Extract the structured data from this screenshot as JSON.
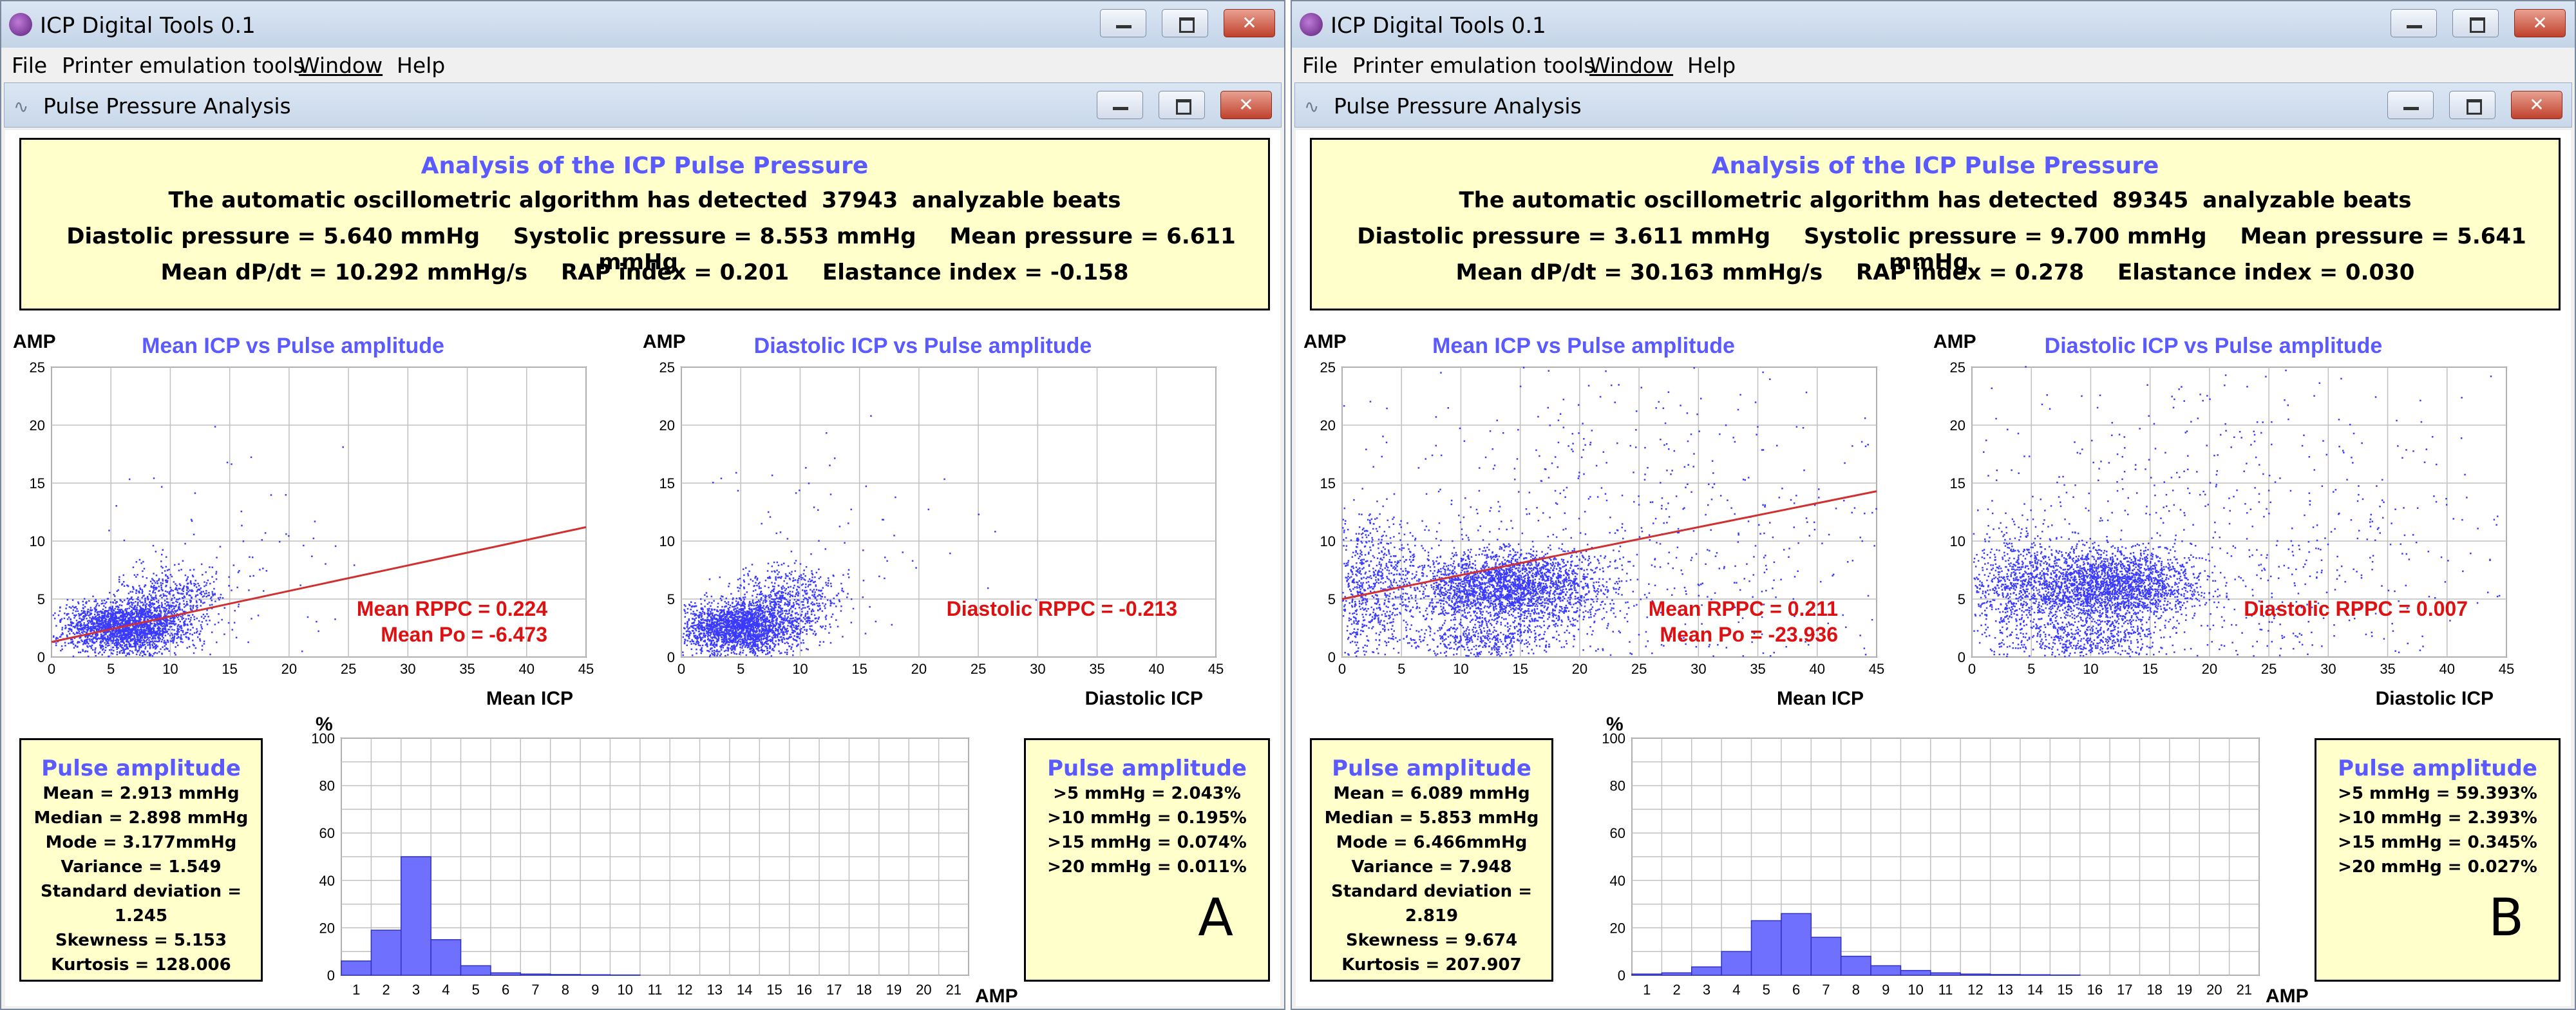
{
  "windows": [
    {
      "id": "A",
      "app_title": "ICP Digital Tools 0.1",
      "menu": [
        "File",
        "Printer emulation tools",
        "Window",
        "Help"
      ],
      "child_title": "Pulse Pressure Analysis",
      "summary": {
        "title": "Analysis of the ICP Pulse Pressure",
        "detected": "The automatic oscillometric algorithm has detected",
        "beats": "37943",
        "beats_suffix": "analyzable beats",
        "diastolic": "Diastolic pressure = 5.640 mmHg",
        "systolic": "Systolic pressure = 8.553 mmHg",
        "mean": "Mean pressure = 6.611 mmHg",
        "dpdt": "Mean dP/dt = 10.292 mmHg/s",
        "rap": "RAP index = 0.201",
        "elastance": "Elastance index = -0.158"
      },
      "scatter_mean": {
        "title": "Mean ICP  vs  Pulse amplitude",
        "ylabel": "AMP",
        "xlabel": "Mean ICP",
        "rppc": "Mean RPPC = 0.224",
        "po": "Mean Po = -6.473"
      },
      "scatter_dia": {
        "title": "Diastolic ICP  vs  Pulse amplitude",
        "ylabel": "AMP",
        "xlabel": "Diastolic ICP",
        "rppc": "Diastolic RPPC = -0.213"
      },
      "stats": {
        "title": "Pulse amplitude",
        "lines": [
          "Mean = 2.913 mmHg",
          "Median = 2.898 mmHg",
          "Mode = 3.177mmHg",
          "Variance = 1.549",
          "Standard deviation = 1.245",
          "Skewness = 5.153",
          "Kurtosis = 128.006"
        ]
      },
      "thresholds": {
        "title": "Pulse amplitude",
        "lines": [
          ">5 mmHg = 2.043%",
          ">10 mmHg = 0.195%",
          ">15 mmHg = 0.074%",
          ">20 mmHg = 0.011%"
        ]
      },
      "histogram": {
        "ylabel": "%",
        "xlabel": "AMP"
      },
      "panel_label": "A"
    },
    {
      "id": "B",
      "app_title": "ICP Digital Tools 0.1",
      "menu": [
        "File",
        "Printer emulation tools",
        "Window",
        "Help"
      ],
      "child_title": "Pulse Pressure Analysis",
      "summary": {
        "title": "Analysis of the ICP Pulse Pressure",
        "detected": "The automatic oscillometric algorithm has detected",
        "beats": "89345",
        "beats_suffix": "analyzable beats",
        "diastolic": "Diastolic pressure = 3.611 mmHg",
        "systolic": "Systolic pressure = 9.700 mmHg",
        "mean": "Mean pressure = 5.641 mmHg",
        "dpdt": "Mean dP/dt = 30.163 mmHg/s",
        "rap": "RAP index = 0.278",
        "elastance": "Elastance index = 0.030"
      },
      "scatter_mean": {
        "title": "Mean ICP  vs  Pulse amplitude",
        "ylabel": "AMP",
        "xlabel": "Mean ICP",
        "rppc": "Mean RPPC = 0.211",
        "po": "Mean Po = -23.936"
      },
      "scatter_dia": {
        "title": "Diastolic ICP  vs  Pulse amplitude",
        "ylabel": "AMP",
        "xlabel": "Diastolic ICP",
        "rppc": "Diastolic RPPC = 0.007"
      },
      "stats": {
        "title": "Pulse amplitude",
        "lines": [
          "Mean = 6.089 mmHg",
          "Median = 5.853 mmHg",
          "Mode = 6.466mmHg",
          "Variance = 7.948",
          "Standard deviation = 2.819",
          "Skewness = 9.674",
          "Kurtosis = 207.907"
        ]
      },
      "thresholds": {
        "title": "Pulse amplitude",
        "lines": [
          ">5 mmHg = 59.393%",
          ">10 mmHg = 2.393%",
          ">15 mmHg = 0.345%",
          ">20 mmHg = 0.027%"
        ]
      },
      "histogram": {
        "ylabel": "%",
        "xlabel": "AMP"
      },
      "panel_label": "B"
    }
  ],
  "chart_data": [
    {
      "id": "A-scatter-mean",
      "type": "scatter",
      "title": "Mean ICP  vs  Pulse amplitude",
      "xlabel": "Mean ICP",
      "ylabel": "AMP",
      "xlim": [
        0,
        45
      ],
      "ylim": [
        0,
        25
      ],
      "xticks": [
        0,
        5,
        10,
        15,
        20,
        25,
        30,
        35,
        40,
        45
      ],
      "yticks": [
        0,
        5,
        10,
        15,
        20,
        25
      ],
      "grid": true,
      "clusters": [
        {
          "cx": 6,
          "cy": 2.5,
          "sx": 2.6,
          "sy": 1.1,
          "n": 2200
        },
        {
          "cx": 10,
          "cy": 5,
          "sx": 2.2,
          "sy": 1.4,
          "n": 500
        },
        {
          "cx": 15,
          "cy": 8,
          "sx": 6,
          "sy": 5,
          "n": 90
        }
      ],
      "regression": {
        "x": [
          0,
          45
        ],
        "y": [
          1.3,
          11.2
        ]
      },
      "annotations": [
        "Mean RPPC = 0.224",
        "Mean Po = -6.473"
      ]
    },
    {
      "id": "A-scatter-diastolic",
      "type": "scatter",
      "title": "Diastolic ICP  vs  Pulse amplitude",
      "xlabel": "Diastolic ICP",
      "ylabel": "AMP",
      "xlim": [
        0,
        45
      ],
      "ylim": [
        0,
        25
      ],
      "xticks": [
        0,
        5,
        10,
        15,
        20,
        25,
        30,
        35,
        40,
        45
      ],
      "yticks": [
        0,
        5,
        10,
        15,
        20,
        25
      ],
      "grid": true,
      "clusters": [
        {
          "cx": 5,
          "cy": 2.5,
          "sx": 2.6,
          "sy": 1.1,
          "n": 2200
        },
        {
          "cx": 9,
          "cy": 5,
          "sx": 2.2,
          "sy": 1.4,
          "n": 500
        },
        {
          "cx": 12,
          "cy": 9,
          "sx": 6,
          "sy": 5,
          "n": 80
        }
      ],
      "annotations": [
        "Diastolic RPPC = -0.213"
      ]
    },
    {
      "id": "A-histogram",
      "type": "bar",
      "xlabel": "AMP",
      "ylabel": "%",
      "ylim": [
        0,
        100
      ],
      "yticks": [
        0,
        20,
        40,
        60,
        80,
        100
      ],
      "categories": [
        1,
        2,
        3,
        4,
        5,
        6,
        7,
        8,
        9,
        10,
        11,
        12,
        13,
        14,
        15,
        16,
        17,
        18,
        19,
        20,
        21
      ],
      "values": [
        6,
        19,
        50,
        15,
        4,
        1,
        0.5,
        0.3,
        0.2,
        0.1,
        0,
        0,
        0,
        0,
        0,
        0,
        0,
        0,
        0,
        0,
        0
      ]
    },
    {
      "id": "B-scatter-mean",
      "type": "scatter",
      "title": "Mean ICP  vs  Pulse amplitude",
      "xlabel": "Mean ICP",
      "ylabel": "AMP",
      "xlim": [
        0,
        45
      ],
      "ylim": [
        0,
        25
      ],
      "xticks": [
        0,
        5,
        10,
        15,
        20,
        25,
        30,
        35,
        40,
        45
      ],
      "yticks": [
        0,
        5,
        10,
        15,
        20,
        25
      ],
      "grid": true,
      "clusters": [
        {
          "cx": 14,
          "cy": 6,
          "sx": 4,
          "sy": 1.6,
          "n": 2600
        },
        {
          "cx": 2,
          "cy": 6,
          "sx": 2,
          "sy": 3,
          "n": 800
        },
        {
          "cx": 12,
          "cy": 1.5,
          "sx": 3,
          "sy": 0.8,
          "n": 400
        },
        {
          "cx": 22,
          "cy": 10,
          "sx": 12,
          "sy": 7,
          "n": 700
        }
      ],
      "regression": {
        "x": [
          0,
          45
        ],
        "y": [
          5,
          14.3
        ]
      },
      "annotations": [
        "Mean RPPC = 0.211",
        "Mean Po = -23.936"
      ]
    },
    {
      "id": "B-scatter-diastolic",
      "type": "scatter",
      "title": "Diastolic ICP  vs  Pulse amplitude",
      "xlabel": "Diastolic ICP",
      "ylabel": "AMP",
      "xlim": [
        0,
        45
      ],
      "ylim": [
        0,
        25
      ],
      "xticks": [
        0,
        5,
        10,
        15,
        20,
        25,
        30,
        35,
        40,
        45
      ],
      "yticks": [
        0,
        5,
        10,
        15,
        20,
        25
      ],
      "grid": true,
      "clusters": [
        {
          "cx": 11,
          "cy": 6,
          "sx": 4,
          "sy": 1.6,
          "n": 2600
        },
        {
          "cx": 3,
          "cy": 6,
          "sx": 2,
          "sy": 3,
          "n": 500
        },
        {
          "cx": 10,
          "cy": 1.5,
          "sx": 3,
          "sy": 0.8,
          "n": 400
        },
        {
          "cx": 20,
          "cy": 10,
          "sx": 12,
          "sy": 7,
          "n": 700
        }
      ],
      "annotations": [
        "Diastolic RPPC = 0.007"
      ]
    },
    {
      "id": "B-histogram",
      "type": "bar",
      "xlabel": "AMP",
      "ylabel": "%",
      "ylim": [
        0,
        100
      ],
      "yticks": [
        0,
        20,
        40,
        60,
        80,
        100
      ],
      "categories": [
        1,
        2,
        3,
        4,
        5,
        6,
        7,
        8,
        9,
        10,
        11,
        12,
        13,
        14,
        15,
        16,
        17,
        18,
        19,
        20,
        21
      ],
      "values": [
        0.5,
        1,
        3.5,
        10,
        23,
        26,
        16,
        8,
        4,
        2,
        1,
        0.5,
        0.3,
        0.2,
        0.1,
        0,
        0,
        0,
        0,
        0,
        0
      ]
    }
  ],
  "colors": {
    "points": "#3b3bff",
    "regression": "#d03030",
    "annotation": "#dd1111",
    "plot_title": "#5a5aff",
    "summary_bg": "#ffffcc",
    "bar_fill": "#7070ff",
    "grid": "#c0c0c0"
  },
  "icons": {
    "app": "purple-sphere-icon",
    "minimize": "minimize-icon",
    "maximize": "maximize-icon",
    "close": "close-icon",
    "child": "waveform-icon"
  }
}
